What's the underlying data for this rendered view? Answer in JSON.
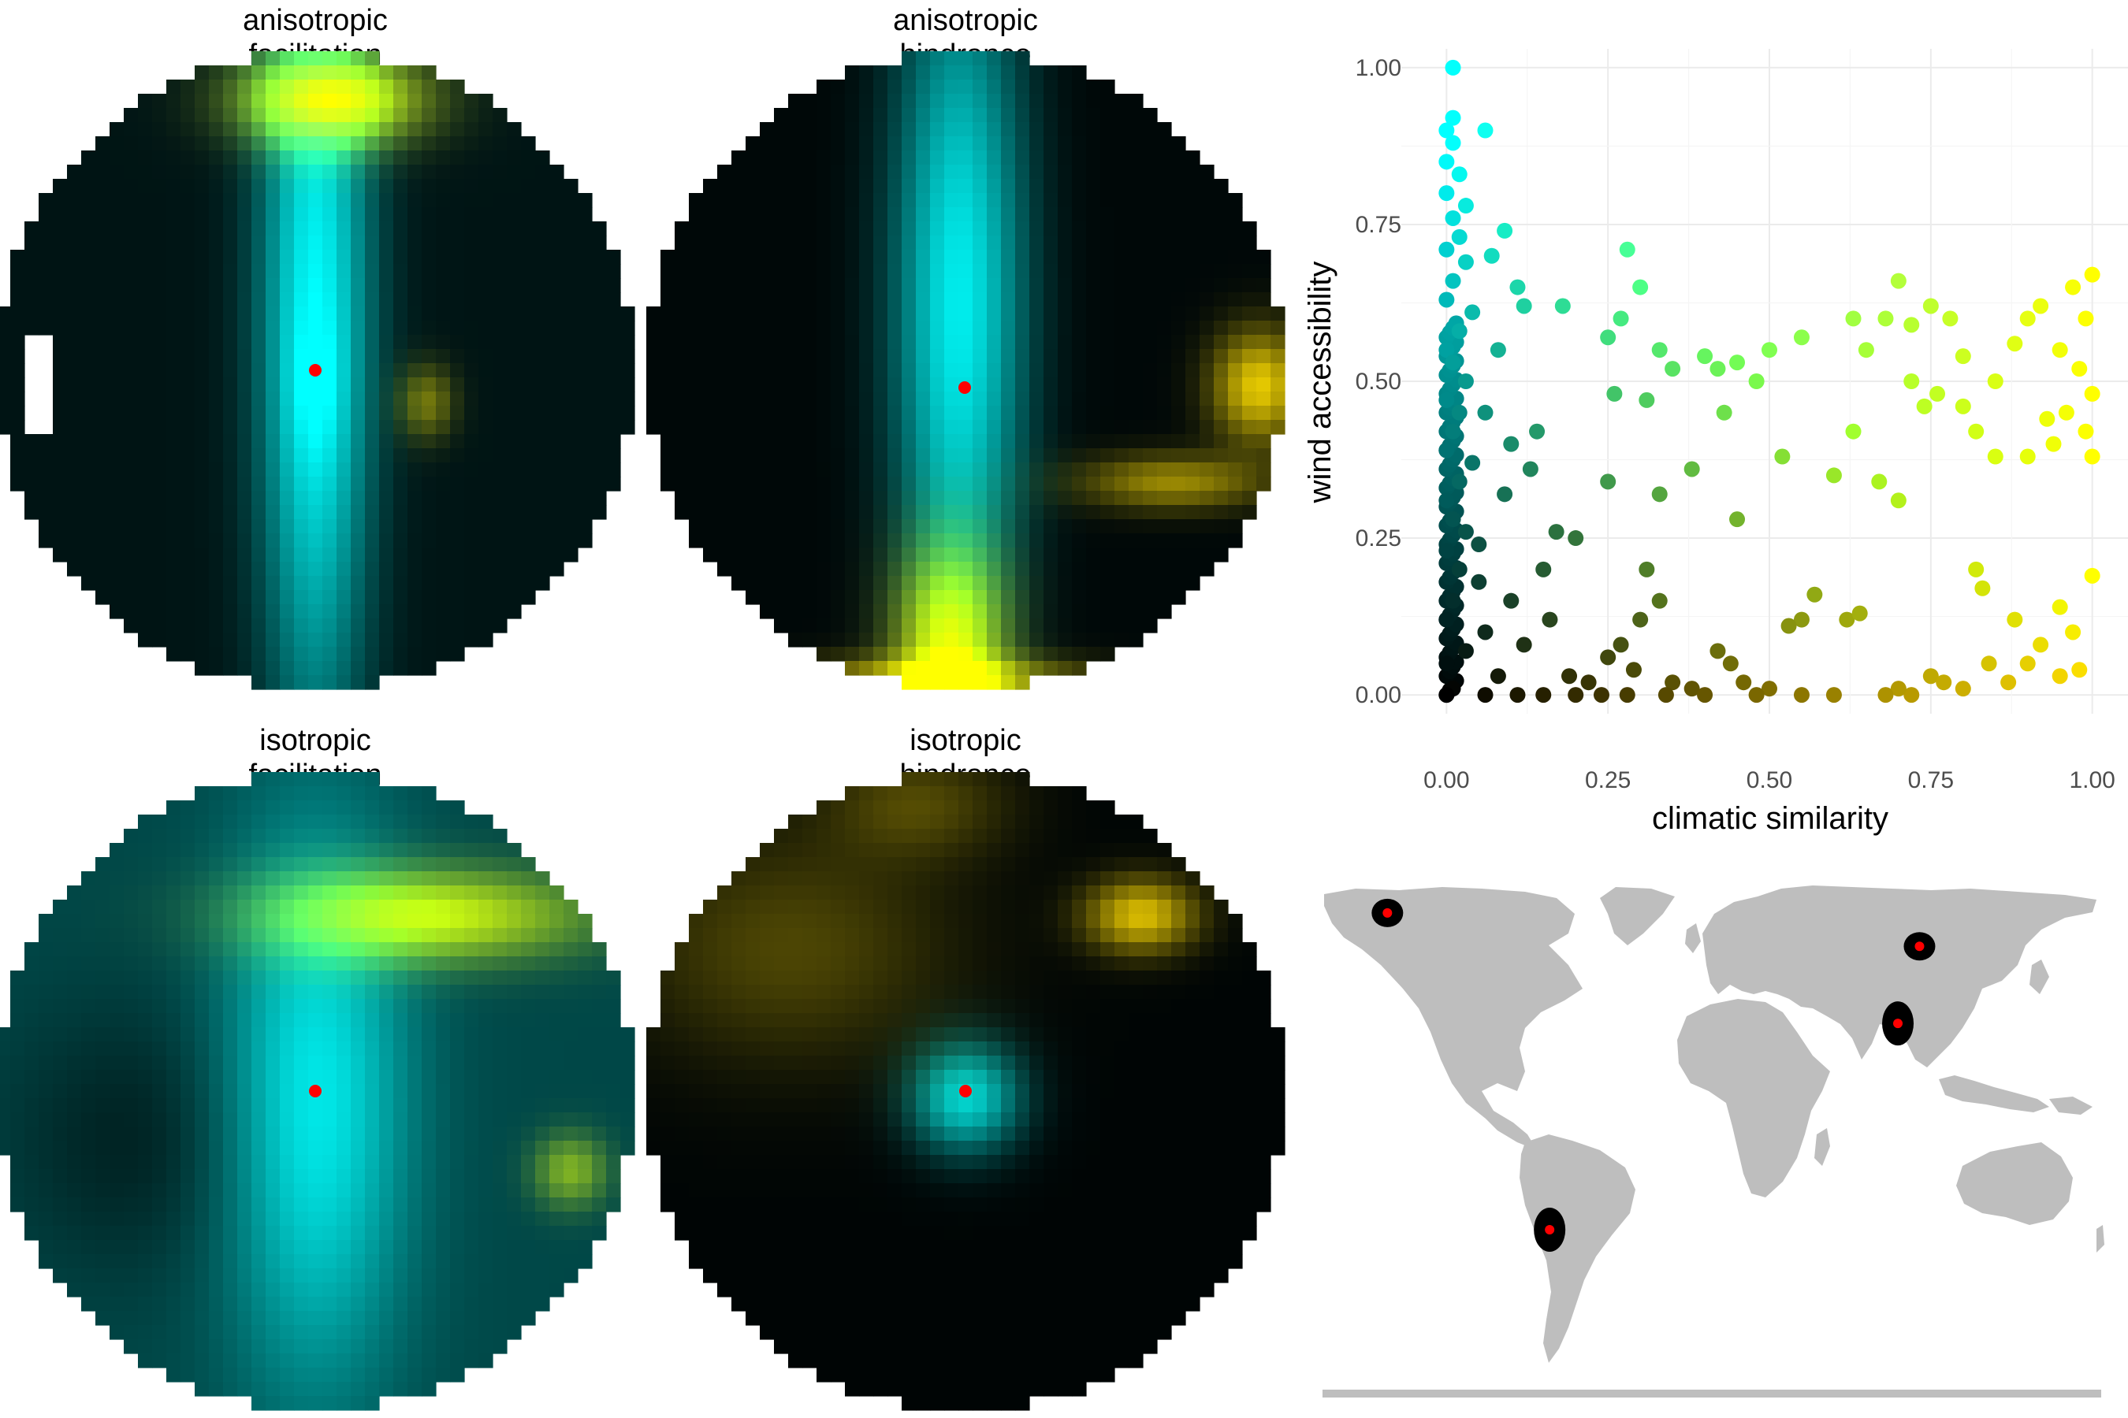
{
  "figure": {
    "panels": [
      {
        "title_line1": "anisotropic",
        "title_line2": "facilitation"
      },
      {
        "title_line1": "anisotropic",
        "title_line2": "hindrance"
      },
      {
        "title_line1": "isotropic",
        "title_line2": "facilitation"
      },
      {
        "title_line1": "isotropic",
        "title_line2": "hindrance"
      }
    ]
  },
  "chart_data": [
    {
      "type": "heatmap",
      "title": "anisotropic facilitation",
      "color_scale": {
        "low": "#000000",
        "wind": "#00ffff",
        "climate": "#ffd700",
        "both": "#80ff00"
      },
      "focal_point_color": "#ff0000"
    },
    {
      "type": "heatmap",
      "title": "anisotropic hindrance",
      "color_scale": {
        "low": "#000000",
        "wind": "#00ffff",
        "climate": "#ffd700",
        "both": "#80ff00"
      },
      "focal_point_color": "#ff0000"
    },
    {
      "type": "heatmap",
      "title": "isotropic facilitation",
      "color_scale": {
        "low": "#000000",
        "wind": "#00ffff",
        "climate": "#ffd700",
        "both": "#80ff00"
      },
      "focal_point_color": "#ff0000"
    },
    {
      "type": "heatmap",
      "title": "isotropic hindrance",
      "color_scale": {
        "low": "#000000",
        "wind": "#00ffff",
        "climate": "#ffd700",
        "both": "#80ff00"
      },
      "focal_point_color": "#ff0000"
    },
    {
      "type": "scatter",
      "xlabel": "climatic similarity",
      "ylabel": "wind accessibility",
      "xlim": [
        -0.07,
        1.07
      ],
      "ylim": [
        -0.03,
        1.03
      ],
      "xticks": [
        "0.00",
        "0.25",
        "0.50",
        "0.75",
        "1.00"
      ],
      "yticks": [
        "0.00",
        "0.25",
        "0.50",
        "0.75",
        "1.00"
      ],
      "grid": true,
      "point_color_rule": "cyan for high wind accessibility, gold for high climatic similarity, green for both, black for neither",
      "points": [
        [
          0.01,
          1.0
        ],
        [
          0.01,
          0.92
        ],
        [
          0.0,
          0.9
        ],
        [
          0.06,
          0.9
        ],
        [
          0.01,
          0.88
        ],
        [
          0.0,
          0.85
        ],
        [
          0.02,
          0.83
        ],
        [
          0.0,
          0.8
        ],
        [
          0.03,
          0.78
        ],
        [
          0.01,
          0.76
        ],
        [
          0.02,
          0.73
        ],
        [
          0.0,
          0.71
        ],
        [
          0.03,
          0.69
        ],
        [
          0.01,
          0.66
        ],
        [
          0.0,
          0.63
        ],
        [
          0.04,
          0.61
        ],
        [
          0.02,
          0.58
        ],
        [
          0.0,
          0.55
        ],
        [
          0.01,
          0.53
        ],
        [
          0.03,
          0.5
        ],
        [
          0.0,
          0.47
        ],
        [
          0.02,
          0.45
        ],
        [
          0.01,
          0.42
        ],
        [
          0.0,
          0.39
        ],
        [
          0.04,
          0.37
        ],
        [
          0.02,
          0.34
        ],
        [
          0.0,
          0.31
        ],
        [
          0.01,
          0.28
        ],
        [
          0.03,
          0.26
        ],
        [
          0.0,
          0.23
        ],
        [
          0.02,
          0.2
        ],
        [
          0.05,
          0.18
        ],
        [
          0.01,
          0.15
        ],
        [
          0.0,
          0.12
        ],
        [
          0.06,
          0.1
        ],
        [
          0.03,
          0.07
        ],
        [
          0.0,
          0.05
        ],
        [
          0.08,
          0.03
        ],
        [
          0.01,
          0.01
        ],
        [
          0.0,
          0.0
        ],
        [
          0.1,
          0.4
        ],
        [
          0.08,
          0.55
        ],
        [
          0.12,
          0.62
        ],
        [
          0.14,
          0.42
        ],
        [
          0.18,
          0.62
        ],
        [
          0.2,
          0.25
        ],
        [
          0.22,
          0.02
        ],
        [
          0.15,
          0.2
        ],
        [
          0.09,
          0.32
        ],
        [
          0.13,
          0.36
        ],
        [
          0.07,
          0.7
        ],
        [
          0.09,
          0.74
        ],
        [
          0.11,
          0.65
        ],
        [
          0.05,
          0.24
        ],
        [
          0.16,
          0.12
        ],
        [
          0.19,
          0.03
        ],
        [
          0.12,
          0.08
        ],
        [
          0.1,
          0.15
        ],
        [
          0.17,
          0.26
        ],
        [
          0.06,
          0.45
        ],
        [
          0.28,
          0.71
        ],
        [
          0.3,
          0.65
        ],
        [
          0.25,
          0.57
        ],
        [
          0.33,
          0.55
        ],
        [
          0.4,
          0.54
        ],
        [
          0.45,
          0.53
        ],
        [
          0.5,
          0.55
        ],
        [
          0.55,
          0.57
        ],
        [
          0.27,
          0.6
        ],
        [
          0.35,
          0.52
        ],
        [
          0.42,
          0.52
        ],
        [
          0.48,
          0.5
        ],
        [
          0.26,
          0.48
        ],
        [
          0.31,
          0.47
        ],
        [
          0.38,
          0.36
        ],
        [
          0.43,
          0.45
        ],
        [
          0.52,
          0.38
        ],
        [
          0.45,
          0.28
        ],
        [
          0.33,
          0.32
        ],
        [
          0.25,
          0.34
        ],
        [
          0.31,
          0.2
        ],
        [
          0.33,
          0.15
        ],
        [
          0.3,
          0.12
        ],
        [
          0.27,
          0.08
        ],
        [
          0.25,
          0.06
        ],
        [
          0.29,
          0.04
        ],
        [
          0.35,
          0.02
        ],
        [
          0.38,
          0.01
        ],
        [
          0.42,
          0.07
        ],
        [
          0.44,
          0.05
        ],
        [
          0.46,
          0.02
        ],
        [
          0.5,
          0.01
        ],
        [
          0.55,
          0.12
        ],
        [
          0.53,
          0.11
        ],
        [
          0.57,
          0.16
        ],
        [
          0.6,
          0.35
        ],
        [
          0.63,
          0.6
        ],
        [
          0.65,
          0.55
        ],
        [
          0.68,
          0.6
        ],
        [
          0.7,
          0.66
        ],
        [
          0.72,
          0.59
        ],
        [
          0.75,
          0.62
        ],
        [
          0.78,
          0.6
        ],
        [
          0.8,
          0.54
        ],
        [
          0.85,
          0.5
        ],
        [
          0.88,
          0.56
        ],
        [
          0.9,
          0.6
        ],
        [
          0.92,
          0.62
        ],
        [
          0.95,
          0.55
        ],
        [
          0.97,
          0.65
        ],
        [
          1.0,
          0.67
        ],
        [
          0.99,
          0.6
        ],
        [
          0.98,
          0.52
        ],
        [
          1.0,
          0.48
        ],
        [
          0.99,
          0.42
        ],
        [
          1.0,
          0.38
        ],
        [
          0.96,
          0.45
        ],
        [
          0.93,
          0.44
        ],
        [
          0.94,
          0.4
        ],
        [
          0.9,
          0.38
        ],
        [
          0.82,
          0.42
        ],
        [
          0.8,
          0.46
        ],
        [
          0.74,
          0.46
        ],
        [
          0.72,
          0.5
        ],
        [
          0.76,
          0.48
        ],
        [
          0.63,
          0.42
        ],
        [
          0.67,
          0.34
        ],
        [
          0.7,
          0.31
        ],
        [
          0.85,
          0.38
        ],
        [
          0.62,
          0.12
        ],
        [
          0.64,
          0.13
        ],
        [
          0.82,
          0.2
        ],
        [
          0.83,
          0.17
        ],
        [
          0.88,
          0.12
        ],
        [
          0.92,
          0.08
        ],
        [
          0.95,
          0.14
        ],
        [
          0.97,
          0.1
        ],
        [
          1.0,
          0.19
        ],
        [
          0.98,
          0.04
        ],
        [
          0.95,
          0.03
        ],
        [
          0.9,
          0.05
        ],
        [
          0.87,
          0.02
        ],
        [
          0.84,
          0.05
        ],
        [
          0.8,
          0.01
        ],
        [
          0.75,
          0.03
        ],
        [
          0.72,
          0.0
        ],
        [
          0.7,
          0.01
        ],
        [
          0.68,
          0.0
        ],
        [
          0.77,
          0.02
        ],
        [
          0.6,
          0.0
        ],
        [
          0.55,
          0.0
        ],
        [
          0.48,
          0.0
        ],
        [
          0.4,
          0.0
        ],
        [
          0.34,
          0.0
        ],
        [
          0.28,
          0.0
        ],
        [
          0.24,
          0.0
        ],
        [
          0.2,
          0.0
        ],
        [
          0.15,
          0.0
        ],
        [
          0.11,
          0.0
        ],
        [
          0.06,
          0.0
        ]
      ]
    },
    {
      "type": "map",
      "land_color": "#bebebe",
      "point_color": "#ff0000",
      "buffer_color": "#000000",
      "focal_locations": [
        {
          "lon": -150,
          "lat": 61
        },
        {
          "lon": 96,
          "lat": 50
        },
        {
          "lon": 86,
          "lat": 31
        },
        {
          "lon": -75,
          "lat": -9
        }
      ]
    }
  ]
}
